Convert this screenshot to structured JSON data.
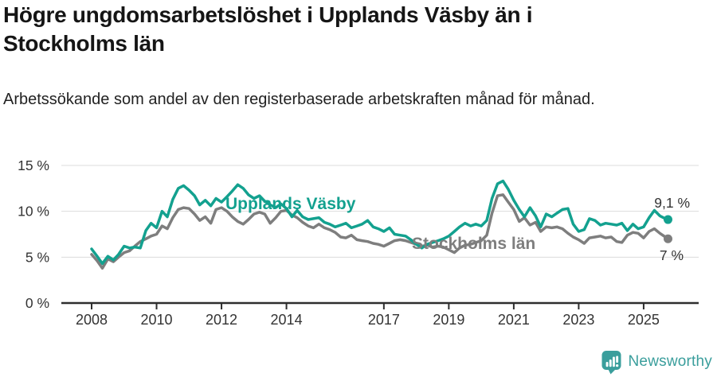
{
  "header": {
    "title": "Högre ungdomsarbetslöshet i Upplands Väsby än i Stockholms län",
    "subtitle": "Arbetssökande som andel av den registerbaserade arbetskraften månad för månad."
  },
  "chart_data": {
    "type": "line",
    "title": "Högre ungdomsarbetslöshet i Upplands Väsby än i Stockholms län",
    "subtitle": "Arbetssökande som andel av den registerbaserade arbetskraften månad för månad.",
    "unit": "%",
    "grid": "horizontal-only",
    "legend_position": "inline-labels-on-lines",
    "x_axis": {
      "ticks": [
        2008,
        2010,
        2012,
        2014,
        2017,
        2019,
        2021,
        2023,
        2025
      ],
      "tick_labels": [
        "2008",
        "2010",
        "2012",
        "2014",
        "2017",
        "2019",
        "2021",
        "2023",
        "2025"
      ],
      "range": [
        2007.1,
        2026.7
      ]
    },
    "y_axis": {
      "tick_values": [
        0,
        5,
        10,
        15
      ],
      "tick_labels": [
        "0 %",
        "5 %",
        "10 %",
        "15 %"
      ],
      "range": [
        0,
        15
      ]
    },
    "series": [
      {
        "name": "Upplands Väsby",
        "color": "#13A18F",
        "end_label": "9,1 %",
        "end_value": 9.1,
        "points": [
          [
            2008.0,
            5.9
          ],
          [
            2008.17,
            5.1
          ],
          [
            2008.33,
            4.3
          ],
          [
            2008.5,
            5.1
          ],
          [
            2008.67,
            4.7
          ],
          [
            2008.83,
            5.3
          ],
          [
            2009.0,
            6.2
          ],
          [
            2009.17,
            6.0
          ],
          [
            2009.33,
            6.1
          ],
          [
            2009.5,
            6.0
          ],
          [
            2009.67,
            7.9
          ],
          [
            2009.83,
            8.7
          ],
          [
            2010.0,
            8.2
          ],
          [
            2010.17,
            10.0
          ],
          [
            2010.33,
            9.4
          ],
          [
            2010.5,
            11.3
          ],
          [
            2010.67,
            12.5
          ],
          [
            2010.83,
            12.8
          ],
          [
            2011.0,
            12.3
          ],
          [
            2011.17,
            11.7
          ],
          [
            2011.33,
            10.7
          ],
          [
            2011.5,
            11.2
          ],
          [
            2011.67,
            10.6
          ],
          [
            2011.83,
            11.4
          ],
          [
            2012.0,
            11.0
          ],
          [
            2012.17,
            11.6
          ],
          [
            2012.33,
            12.2
          ],
          [
            2012.5,
            12.9
          ],
          [
            2012.67,
            12.5
          ],
          [
            2012.83,
            11.8
          ],
          [
            2013.0,
            11.4
          ],
          [
            2013.17,
            11.7
          ],
          [
            2013.33,
            11.1
          ],
          [
            2013.5,
            10.7
          ],
          [
            2013.67,
            10.4
          ],
          [
            2013.83,
            10.8
          ],
          [
            2014.0,
            10.3
          ],
          [
            2014.17,
            9.4
          ],
          [
            2014.33,
            10.1
          ],
          [
            2014.5,
            9.4
          ],
          [
            2014.67,
            9.1
          ],
          [
            2014.83,
            9.2
          ],
          [
            2015.0,
            9.3
          ],
          [
            2015.17,
            8.8
          ],
          [
            2015.33,
            8.6
          ],
          [
            2015.5,
            8.3
          ],
          [
            2015.67,
            8.5
          ],
          [
            2015.83,
            8.7
          ],
          [
            2016.0,
            8.2
          ],
          [
            2016.17,
            8.4
          ],
          [
            2016.33,
            8.6
          ],
          [
            2016.5,
            9.0
          ],
          [
            2016.67,
            8.3
          ],
          [
            2016.83,
            8.1
          ],
          [
            2017.0,
            7.8
          ],
          [
            2017.17,
            8.2
          ],
          [
            2017.33,
            7.5
          ],
          [
            2017.5,
            7.4
          ],
          [
            2017.67,
            7.3
          ],
          [
            2017.83,
            6.9
          ],
          [
            2018.0,
            6.4
          ],
          [
            2018.17,
            6.0
          ],
          [
            2018.33,
            6.4
          ],
          [
            2018.5,
            6.6
          ],
          [
            2018.67,
            6.8
          ],
          [
            2018.83,
            7.0
          ],
          [
            2019.0,
            7.3
          ],
          [
            2019.17,
            7.8
          ],
          [
            2019.33,
            8.3
          ],
          [
            2019.5,
            8.7
          ],
          [
            2019.67,
            8.4
          ],
          [
            2019.83,
            8.6
          ],
          [
            2020.0,
            8.4
          ],
          [
            2020.17,
            9.0
          ],
          [
            2020.33,
            11.4
          ],
          [
            2020.5,
            13.0
          ],
          [
            2020.67,
            13.3
          ],
          [
            2020.83,
            12.4
          ],
          [
            2021.0,
            11.2
          ],
          [
            2021.17,
            10.2
          ],
          [
            2021.33,
            9.4
          ],
          [
            2021.5,
            10.4
          ],
          [
            2021.67,
            9.5
          ],
          [
            2021.83,
            8.3
          ],
          [
            2022.0,
            9.7
          ],
          [
            2022.17,
            9.4
          ],
          [
            2022.33,
            9.8
          ],
          [
            2022.5,
            10.2
          ],
          [
            2022.67,
            10.3
          ],
          [
            2022.83,
            8.6
          ],
          [
            2023.0,
            7.8
          ],
          [
            2023.17,
            8.0
          ],
          [
            2023.33,
            9.2
          ],
          [
            2023.5,
            9.0
          ],
          [
            2023.67,
            8.5
          ],
          [
            2023.83,
            8.7
          ],
          [
            2024.0,
            8.6
          ],
          [
            2024.17,
            8.5
          ],
          [
            2024.33,
            8.7
          ],
          [
            2024.5,
            7.9
          ],
          [
            2024.67,
            8.6
          ],
          [
            2024.83,
            8.1
          ],
          [
            2025.0,
            8.3
          ],
          [
            2025.17,
            9.3
          ],
          [
            2025.33,
            10.1
          ],
          [
            2025.5,
            9.5
          ],
          [
            2025.67,
            9.2
          ],
          [
            2025.75,
            9.1
          ]
        ]
      },
      {
        "name": "Stockholms län",
        "color": "#7E7E7E",
        "end_label": "7 %",
        "end_value": 7.0,
        "points": [
          [
            2008.0,
            5.3
          ],
          [
            2008.17,
            4.6
          ],
          [
            2008.33,
            3.8
          ],
          [
            2008.5,
            4.8
          ],
          [
            2008.67,
            4.5
          ],
          [
            2008.83,
            5.0
          ],
          [
            2009.0,
            5.5
          ],
          [
            2009.17,
            5.7
          ],
          [
            2009.33,
            6.2
          ],
          [
            2009.5,
            6.7
          ],
          [
            2009.67,
            7.0
          ],
          [
            2009.83,
            7.3
          ],
          [
            2010.0,
            7.5
          ],
          [
            2010.17,
            8.4
          ],
          [
            2010.33,
            8.1
          ],
          [
            2010.5,
            9.3
          ],
          [
            2010.67,
            10.2
          ],
          [
            2010.83,
            10.4
          ],
          [
            2011.0,
            10.3
          ],
          [
            2011.17,
            9.7
          ],
          [
            2011.33,
            9.0
          ],
          [
            2011.5,
            9.4
          ],
          [
            2011.67,
            8.7
          ],
          [
            2011.83,
            10.2
          ],
          [
            2012.0,
            10.4
          ],
          [
            2012.17,
            10.0
          ],
          [
            2012.33,
            9.4
          ],
          [
            2012.5,
            8.9
          ],
          [
            2012.67,
            8.6
          ],
          [
            2012.83,
            9.1
          ],
          [
            2013.0,
            9.7
          ],
          [
            2013.17,
            9.9
          ],
          [
            2013.33,
            9.7
          ],
          [
            2013.5,
            8.7
          ],
          [
            2013.67,
            9.3
          ],
          [
            2013.83,
            10.0
          ],
          [
            2014.0,
            10.1
          ],
          [
            2014.17,
            9.6
          ],
          [
            2014.33,
            9.3
          ],
          [
            2014.5,
            8.8
          ],
          [
            2014.67,
            8.4
          ],
          [
            2014.83,
            8.2
          ],
          [
            2015.0,
            8.6
          ],
          [
            2015.17,
            8.2
          ],
          [
            2015.33,
            8.0
          ],
          [
            2015.5,
            7.7
          ],
          [
            2015.67,
            7.2
          ],
          [
            2015.83,
            7.1
          ],
          [
            2016.0,
            7.4
          ],
          [
            2016.17,
            6.9
          ],
          [
            2016.33,
            6.8
          ],
          [
            2016.5,
            6.7
          ],
          [
            2016.67,
            6.5
          ],
          [
            2016.83,
            6.4
          ],
          [
            2017.0,
            6.2
          ],
          [
            2017.17,
            6.5
          ],
          [
            2017.33,
            6.8
          ],
          [
            2017.5,
            6.9
          ],
          [
            2017.67,
            6.8
          ],
          [
            2017.83,
            6.6
          ],
          [
            2018.0,
            6.4
          ],
          [
            2018.17,
            6.2
          ],
          [
            2018.33,
            6.3
          ],
          [
            2018.5,
            6.1
          ],
          [
            2018.67,
            6.2
          ],
          [
            2018.83,
            6.1
          ],
          [
            2019.0,
            5.8
          ],
          [
            2019.17,
            5.5
          ],
          [
            2019.33,
            6.0
          ],
          [
            2019.5,
            6.3
          ],
          [
            2019.67,
            6.4
          ],
          [
            2019.83,
            6.6
          ],
          [
            2020.0,
            6.8
          ],
          [
            2020.17,
            7.4
          ],
          [
            2020.33,
            9.8
          ],
          [
            2020.5,
            11.7
          ],
          [
            2020.67,
            11.8
          ],
          [
            2020.83,
            11.0
          ],
          [
            2021.0,
            10.2
          ],
          [
            2021.17,
            8.9
          ],
          [
            2021.33,
            9.3
          ],
          [
            2021.5,
            8.5
          ],
          [
            2021.67,
            8.8
          ],
          [
            2021.83,
            7.8
          ],
          [
            2022.0,
            8.3
          ],
          [
            2022.17,
            8.2
          ],
          [
            2022.33,
            8.3
          ],
          [
            2022.5,
            8.1
          ],
          [
            2022.67,
            7.6
          ],
          [
            2022.83,
            7.2
          ],
          [
            2023.0,
            6.9
          ],
          [
            2023.17,
            6.5
          ],
          [
            2023.33,
            7.1
          ],
          [
            2023.5,
            7.2
          ],
          [
            2023.67,
            7.3
          ],
          [
            2023.83,
            7.1
          ],
          [
            2024.0,
            7.2
          ],
          [
            2024.17,
            6.7
          ],
          [
            2024.33,
            6.6
          ],
          [
            2024.5,
            7.4
          ],
          [
            2024.67,
            7.7
          ],
          [
            2024.83,
            7.6
          ],
          [
            2025.0,
            7.1
          ],
          [
            2025.17,
            7.8
          ],
          [
            2025.33,
            8.1
          ],
          [
            2025.5,
            7.6
          ],
          [
            2025.67,
            7.2
          ],
          [
            2025.75,
            7.0
          ]
        ]
      }
    ],
    "colors": {
      "accent_teal": "#13A18F",
      "series_gray": "#7E7E7E",
      "grid": "#DCDCDC",
      "axis": "#2E2E2E",
      "tick_text": "#333333"
    }
  },
  "footer": {
    "brand": "Newsworthy",
    "brand_color": "#3A9E9C",
    "logo_icon": "bar-chart-speech-bubble-icon"
  }
}
